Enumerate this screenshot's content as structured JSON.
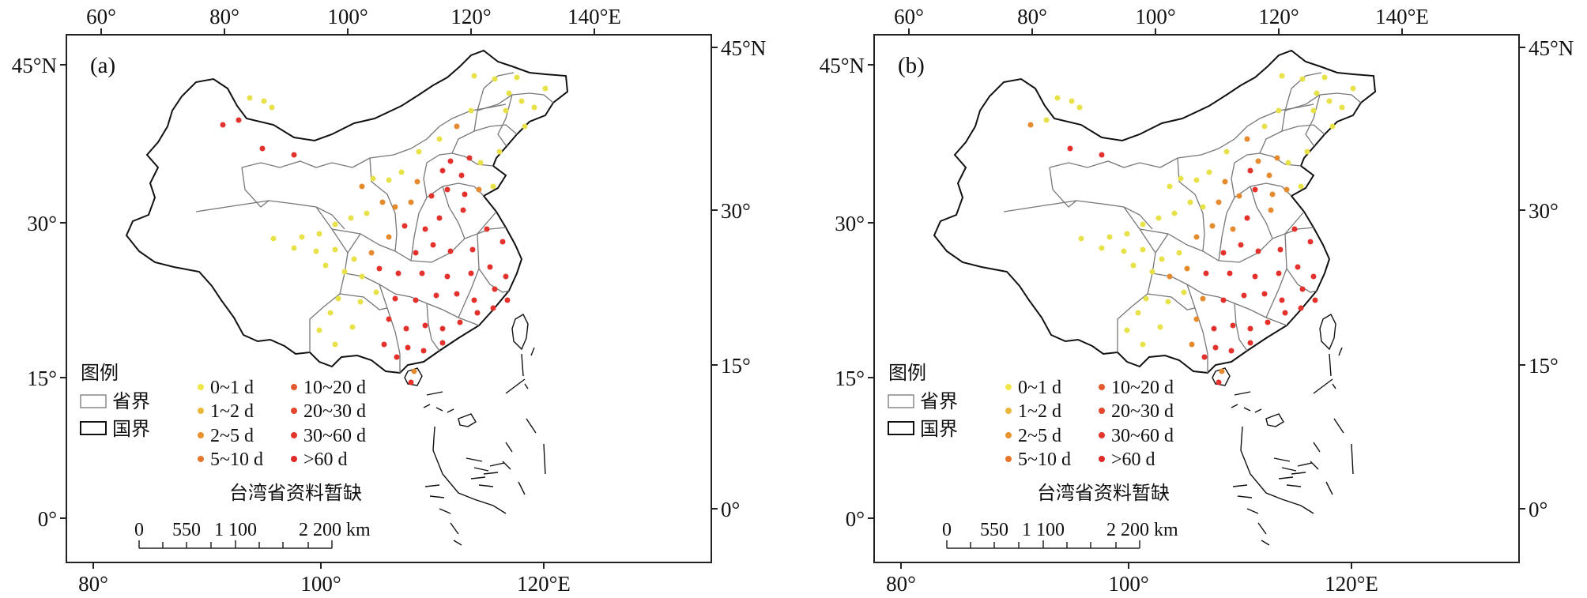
{
  "panels": [
    {
      "label": "(a)",
      "dot_colors": {
        "yellow": "#e8e24a",
        "orange": "#e68a2e",
        "red": "#e4312b"
      },
      "top_ticks": [
        "60°",
        "80°",
        "100°",
        "120°",
        "140°E"
      ],
      "bottom_ticks": [
        "80°",
        "100°",
        "120°E"
      ],
      "left_ticks": [
        "45°N",
        "30°",
        "15°",
        "0°"
      ],
      "right_ticks": [
        "45°N",
        "30°",
        "15°",
        "0°"
      ],
      "legend": {
        "title": "图例",
        "province_label": "省界",
        "national_label": "国界",
        "classes_left": [
          "0~1 d",
          "1~2 d",
          "2~5 d",
          "5~10 d"
        ],
        "classes_right": [
          "10~20 d",
          "20~30 d",
          "30~60 d",
          ">60 d"
        ],
        "taiwan_note": "台湾省资料暂缺"
      },
      "scale": {
        "labels": [
          "0",
          "550",
          "1 100",
          "2 200 km"
        ]
      }
    },
    {
      "label": "(b)",
      "top_ticks": [
        "60°",
        "80°",
        "100°",
        "120°",
        "140°E"
      ],
      "bottom_ticks": [
        "80°",
        "100°",
        "120°E"
      ],
      "left_ticks": [
        "45°N",
        "30°",
        "15°",
        "0°"
      ],
      "right_ticks": [
        "45°N",
        "30°",
        "15°",
        "0°"
      ],
      "legend": {
        "title": "图例",
        "province_label": "省界",
        "national_label": "国界",
        "classes_left": [
          "0~1 d",
          "1~2 d",
          "2~5 d",
          "5~10 d"
        ],
        "classes_right": [
          "10~20 d",
          "20~30 d",
          "30~60 d",
          ">60 d"
        ],
        "taiwan_note": "台湾省资料暂缺"
      },
      "scale": {
        "labels": [
          "0",
          "550",
          "1 100",
          "2 200 km"
        ]
      }
    }
  ],
  "legend_class_colors": [
    "#f0e64a",
    "#e7b83a",
    "#e8922e",
    "#e6762b",
    "#e45a2c",
    "#e4452b",
    "#e2362a",
    "#df2a28"
  ]
}
